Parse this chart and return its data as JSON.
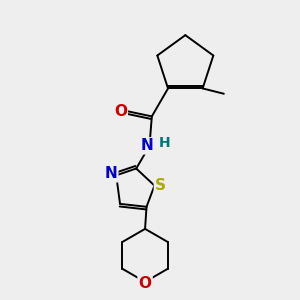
{
  "background_color": "#eeeeee",
  "atom_colors": {
    "C": "#000000",
    "N": "#0000cc",
    "O": "#cc0000",
    "S": "#aaaa00",
    "H": "#007777"
  },
  "bond_color": "#000000",
  "lw": 1.4
}
